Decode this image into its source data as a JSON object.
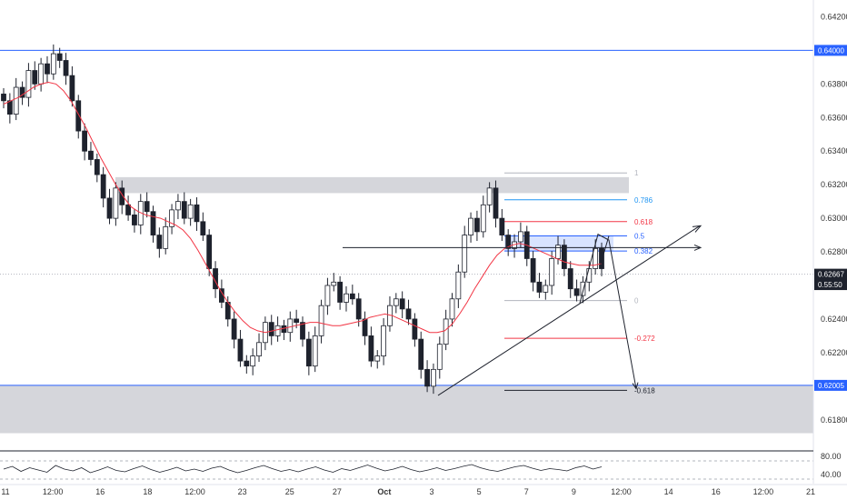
{
  "chart_data": {
    "type": "candlestick",
    "price_axis": {
      "ticks": [
        "0.64200",
        "0.64000",
        "0.63800",
        "0.63600",
        "0.63400",
        "0.63200",
        "0.63000",
        "0.62800",
        "0.62600",
        "0.62400",
        "0.62200",
        "0.62000",
        "0.61800"
      ],
      "range": [
        0.6162,
        0.643
      ]
    },
    "time_axis": {
      "ticks": [
        "11",
        "12:00",
        "16",
        "18",
        "12:00",
        "23",
        "25",
        "27",
        "Oct",
        "3",
        "5",
        "7",
        "9",
        "12:00",
        "14",
        "16",
        "12:00",
        "21"
      ]
    },
    "price_tags": [
      {
        "label": "0.64000",
        "value": 0.64,
        "color": "#2962ff"
      },
      {
        "label": "0.62667",
        "value": 0.62667,
        "color": "#1e222d"
      },
      {
        "label": "0.55:50",
        "value": 0.62605,
        "color": "#1e222d"
      },
      {
        "label": "0.62005",
        "value": 0.62005,
        "color": "#2962ff"
      }
    ],
    "horizontal_levels": [
      {
        "value": 0.64,
        "color": "#2962ff"
      },
      {
        "value": 0.62005,
        "color": "#2962ff"
      }
    ],
    "zones": [
      {
        "from": 0.6315,
        "to": 0.63245,
        "color": "#b2b5be"
      },
      {
        "from": 0.6172,
        "to": 0.62005,
        "color": "#b2b5be"
      }
    ],
    "fibonacci": {
      "levels": [
        {
          "label": "1",
          "value": 0.6327,
          "color": "#b2b5be"
        },
        {
          "label": "0.786",
          "value": 0.6311,
          "color": "#2196f3"
        },
        {
          "label": "0.618",
          "value": 0.6298,
          "color": "#f23645"
        },
        {
          "label": "0.5",
          "value": 0.62895,
          "color": "#2962ff"
        },
        {
          "label": "0.382",
          "value": 0.62805,
          "color": "#2962ff"
        },
        {
          "label": "0",
          "value": 0.6251,
          "color": "#b2b5be"
        },
        {
          "label": "-0.272",
          "value": 0.62285,
          "color": "#f23645"
        },
        {
          "label": "-0.618",
          "value": 0.61975,
          "color": "#1e222d"
        }
      ]
    },
    "close_series": [
      0.637,
      0.6362,
      0.6378,
      0.6372,
      0.6388,
      0.638,
      0.6392,
      0.6386,
      0.6398,
      0.6394,
      0.6385,
      0.637,
      0.6352,
      0.634,
      0.6335,
      0.6326,
      0.6312,
      0.63,
      0.6318,
      0.6308,
      0.6302,
      0.6296,
      0.631,
      0.6304,
      0.629,
      0.6282,
      0.6295,
      0.6305,
      0.631,
      0.63,
      0.6308,
      0.6298,
      0.629,
      0.627,
      0.6258,
      0.625,
      0.624,
      0.6228,
      0.6215,
      0.6212,
      0.6218,
      0.6226,
      0.6238,
      0.623,
      0.6236,
      0.6232,
      0.624,
      0.6238,
      0.6228,
      0.6212,
      0.623,
      0.6248,
      0.626,
      0.6262,
      0.625,
      0.6255,
      0.6252,
      0.624,
      0.623,
      0.6215,
      0.6218,
      0.6236,
      0.6248,
      0.6252,
      0.6246,
      0.624,
      0.6228,
      0.621,
      0.62,
      0.621,
      0.6225,
      0.624,
      0.6252,
      0.6268,
      0.629,
      0.63,
      0.6292,
      0.6308,
      0.6318,
      0.63,
      0.629,
      0.6282,
      0.6286,
      0.6292,
      0.6276,
      0.6262,
      0.6256,
      0.626,
      0.6276,
      0.6284,
      0.627,
      0.6258,
      0.6254,
      0.6262,
      0.627,
      0.6282,
      0.627
    ],
    "moving_average": [
      0.6368,
      0.637,
      0.6372,
      0.6375,
      0.6378,
      0.638,
      0.6381,
      0.638,
      0.6376,
      0.637,
      0.6362,
      0.6354,
      0.6345,
      0.6336,
      0.6328,
      0.632,
      0.6313,
      0.6307,
      0.6304,
      0.6302,
      0.6301,
      0.63,
      0.6298,
      0.6296,
      0.6293,
      0.6288,
      0.6281,
      0.6273,
      0.6265,
      0.6257,
      0.625,
      0.6244,
      0.6239,
      0.6235,
      0.6233,
      0.6232,
      0.6233,
      0.6234,
      0.6235,
      0.6236,
      0.6237,
      0.6238,
      0.6238,
      0.6237,
      0.6236,
      0.6236,
      0.6237,
      0.6238,
      0.6239,
      0.6241,
      0.6242,
      0.6243,
      0.6242,
      0.624,
      0.6238,
      0.6236,
      0.6234,
      0.6232,
      0.6232,
      0.6233,
      0.6237,
      0.6243,
      0.625,
      0.6258,
      0.6265,
      0.6272,
      0.6278,
      0.6282,
      0.6284,
      0.6285,
      0.6284,
      0.6282,
      0.628,
      0.6278,
      0.6276,
      0.6274,
      0.6273,
      0.6272,
      0.6272,
      0.6272,
      0.6273
    ],
    "rsi_axis": {
      "ticks": [
        "80.00",
        "40.00"
      ],
      "range": [
        20,
        90
      ]
    },
    "rsi_series": [
      52,
      58,
      47,
      55,
      50,
      45,
      60,
      52,
      48,
      55,
      44,
      50,
      57,
      49,
      46,
      53,
      59,
      51,
      45,
      50,
      56,
      48,
      52,
      47,
      54,
      58,
      50,
      44,
      49,
      55,
      60,
      53,
      47,
      51,
      46,
      52,
      57,
      50,
      45,
      53,
      49,
      55,
      61,
      54,
      48,
      52,
      58,
      51,
      46,
      50,
      55,
      49,
      53,
      58,
      62,
      55,
      50,
      47,
      52,
      57,
      60,
      54,
      49,
      53,
      51,
      48,
      55,
      59,
      52,
      57
    ],
    "rsi_levels": [
      70,
      30
    ]
  }
}
